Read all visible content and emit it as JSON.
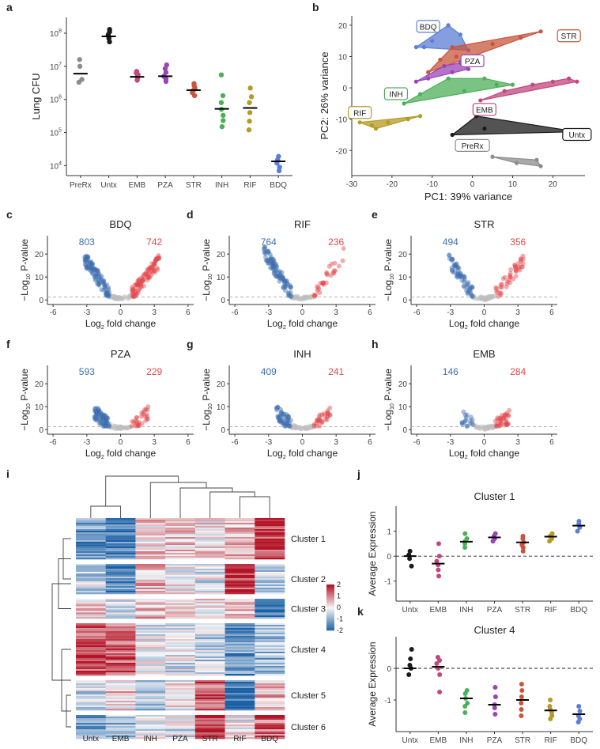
{
  "colors": {
    "PreRx": "#8c8c8c",
    "Untx": "#1a1a1a",
    "EMB": "#c2477e",
    "PZA": "#9a44b5",
    "STR": "#c8553d",
    "INH": "#4daf5a",
    "RIF": "#b59a26",
    "BDQ": "#5c7ed6",
    "down": "#3d6fb0",
    "up": "#e2474b",
    "ns": "#bdbdbd"
  },
  "chart_data": [
    {
      "panel": "a",
      "type": "scatter",
      "ylabel": "Lung CFU",
      "yscale": "log",
      "ylim": [
        5000,
        300000000
      ],
      "yticks": [
        "10^4",
        "10^5",
        "10^6",
        "10^7",
        "10^8"
      ],
      "categories": [
        "PreRx",
        "Untx",
        "EMB",
        "PZA",
        "STR",
        "INH",
        "RIF",
        "BDQ"
      ],
      "points": {
        "PreRx": [
          3300000,
          4000000,
          10000000,
          16000000
        ],
        "Untx": [
          55000000,
          70000000,
          90000000,
          110000000,
          130000000
        ],
        "EMB": [
          3800000,
          4400000,
          5000000,
          5600000,
          6300000,
          7000000
        ],
        "PZA": [
          3500000,
          4200000,
          5000000,
          6500000,
          8500000,
          11000000
        ],
        "STR": [
          1300000,
          1600000,
          1900000,
          2200000,
          2600000,
          3000000
        ],
        "INH": [
          150000,
          230000,
          330000,
          500000,
          800000,
          1300000,
          5500000
        ],
        "RIF": [
          120000,
          220000,
          400000,
          800000,
          1200000,
          2200000
        ],
        "BDQ": [
          7000,
          9000,
          12000,
          15000,
          19000
        ]
      },
      "medians": {
        "PreRx": 6000000,
        "Untx": 80000000,
        "EMB": 4800000,
        "PZA": 5000000,
        "STR": 1900000,
        "INH": 520000,
        "RIF": 550000,
        "BDQ": 13500
      }
    },
    {
      "panel": "b",
      "type": "scatter",
      "xlabel": "PC1: 39% variance",
      "ylabel": "PC2: 26% variance",
      "xlim": [
        -30,
        28
      ],
      "ylim": [
        -28,
        23
      ],
      "xticks": [
        -30,
        -20,
        -10,
        0,
        10,
        20
      ],
      "yticks": [
        -20,
        -10,
        0,
        10,
        20
      ],
      "groups": [
        {
          "name": "BDQ",
          "points": [
            [
              -12,
              13
            ],
            [
              -10,
              15
            ],
            [
              -6,
              20
            ],
            [
              -3,
              17
            ],
            [
              -1,
              12
            ],
            [
              -14,
              13
            ]
          ],
          "label_at": [
            -11,
            19.5
          ]
        },
        {
          "name": "STR",
          "points": [
            [
              -11,
              5
            ],
            [
              -8,
              9
            ],
            [
              -5,
              13
            ],
            [
              5,
              14
            ],
            [
              12,
              16
            ],
            [
              17,
              18
            ],
            [
              -4,
              10
            ]
          ],
          "label_at": [
            24,
            16.5
          ]
        },
        {
          "name": "PZA",
          "points": [
            [
              -14,
              2
            ],
            [
              -11,
              3
            ],
            [
              -7,
              7
            ],
            [
              -3,
              8
            ],
            [
              -1,
              6
            ],
            [
              -5,
              5
            ]
          ],
          "label_at": [
            0,
            8.5
          ]
        },
        {
          "name": "INH",
          "points": [
            [
              -17,
              -5
            ],
            [
              -13,
              -2
            ],
            [
              -6,
              3
            ],
            [
              3,
              3
            ],
            [
              6,
              1
            ],
            [
              10,
              1
            ],
            [
              -2,
              -1
            ]
          ],
          "label_at": [
            -19,
            -2
          ]
        },
        {
          "name": "EMB",
          "points": [
            [
              2,
              -4
            ],
            [
              8,
              -1
            ],
            [
              15,
              1
            ],
            [
              20,
              2
            ],
            [
              24,
              3
            ],
            [
              26,
              2
            ]
          ],
          "label_at": [
            3,
            -7
          ]
        },
        {
          "name": "RIF",
          "points": [
            [
              -28,
              -11
            ],
            [
              -25,
              -12
            ],
            [
              -21,
              -11
            ],
            [
              -16,
              -10
            ],
            [
              -13,
              -9
            ],
            [
              -24,
              -13
            ]
          ],
          "label_at": [
            -28,
            -8
          ]
        },
        {
          "name": "Untx",
          "points": [
            [
              -5,
              -15
            ],
            [
              1,
              -9
            ],
            [
              3,
              -13
            ],
            [
              26,
              -14
            ]
          ],
          "label_at": [
            26,
            -15
          ]
        },
        {
          "name": "PreRx",
          "points": [
            [
              5,
              -22
            ],
            [
              11,
              -24
            ],
            [
              16,
              -23
            ],
            [
              17,
              -25
            ]
          ],
          "label_at": [
            0,
            -18.5
          ]
        }
      ]
    },
    {
      "panel": "c",
      "type": "scatter",
      "title": "BDQ",
      "down": 803,
      "up": 742,
      "spread": 1.0,
      "xlabel": "Log2 fold change",
      "ylabel": "−Log10 P-value",
      "xlim": [
        -6.5,
        6.5
      ],
      "ylim": [
        -2,
        28
      ],
      "xticks": [
        -6,
        -3,
        0,
        3,
        6
      ],
      "yticks": [
        0,
        10,
        20
      ]
    },
    {
      "panel": "d",
      "type": "scatter",
      "title": "RIF",
      "down": 764,
      "up": 236,
      "spread": 1.1,
      "xlabel": "Log2 fold change",
      "ylabel": "−Log10 P-value",
      "xlim": [
        -6.5,
        6.5
      ],
      "ylim": [
        -2,
        28
      ],
      "xticks": [
        -6,
        -3,
        0,
        3,
        6
      ],
      "yticks": [
        0,
        10,
        20
      ]
    },
    {
      "panel": "e",
      "type": "scatter",
      "title": "STR",
      "down": 494,
      "up": 356,
      "spread": 1.0,
      "xlabel": "Log2 fold change",
      "ylabel": "−Log10 P-value",
      "xlim": [
        -6.5,
        6.5
      ],
      "ylim": [
        -2,
        28
      ],
      "xticks": [
        -6,
        -3,
        0,
        3,
        6
      ],
      "yticks": [
        0,
        10,
        20
      ]
    },
    {
      "panel": "f",
      "type": "scatter",
      "title": "PZA",
      "down": 593,
      "up": 229,
      "spread": 0.6,
      "xlabel": "Log2 fold change",
      "ylabel": "−Log10 P-value",
      "xlim": [
        -6.5,
        6.5
      ],
      "ylim": [
        -2,
        28
      ],
      "xticks": [
        -6,
        -3,
        0,
        3,
        6
      ],
      "yticks": [
        0,
        10,
        20
      ]
    },
    {
      "panel": "g",
      "type": "scatter",
      "title": "INH",
      "down": 409,
      "up": 241,
      "spread": 0.6,
      "xlabel": "Log2 fold change",
      "ylabel": "−Log10 P-value",
      "xlim": [
        -6.5,
        6.5
      ],
      "ylim": [
        -2,
        28
      ],
      "xticks": [
        -6,
        -3,
        0,
        3,
        6
      ],
      "yticks": [
        0,
        10,
        20
      ]
    },
    {
      "panel": "h",
      "type": "scatter",
      "title": "EMB",
      "down": 146,
      "up": 284,
      "spread": 0.5,
      "xlabel": "Log2 fold change",
      "ylabel": "−Log10 P-value",
      "xlim": [
        -6.5,
        6.5
      ],
      "ylim": [
        -2,
        28
      ],
      "xticks": [
        -6,
        -3,
        0,
        3,
        6
      ],
      "yticks": [
        0,
        10,
        20
      ]
    },
    {
      "panel": "i",
      "type": "heatmap",
      "columns": [
        "Untx",
        "EMB",
        "INH",
        "PZA",
        "STR",
        "RIF",
        "BDQ"
      ],
      "clusters": [
        {
          "name": "Cluster 1",
          "means": [
            -1.2,
            -1.6,
            0.3,
            0.4,
            0.2,
            0.6,
            1.6
          ]
        },
        {
          "name": "Cluster 2",
          "means": [
            -0.4,
            -1.3,
            0.5,
            0.1,
            -0.2,
            1.6,
            -0.5
          ]
        },
        {
          "name": "Cluster 3",
          "means": [
            0.2,
            -0.3,
            0.5,
            0.4,
            0.3,
            0.5,
            -1.6
          ]
        },
        {
          "name": "Cluster 4",
          "means": [
            1.5,
            1.4,
            -0.1,
            -0.3,
            -0.5,
            -1.3,
            -0.8
          ]
        },
        {
          "name": "Cluster 5",
          "means": [
            -0.3,
            0.3,
            -0.5,
            0.0,
            1.4,
            -1.6,
            0.5
          ]
        },
        {
          "name": "Cluster 6",
          "means": [
            -1.0,
            -0.8,
            -0.1,
            -0.2,
            1.6,
            0.0,
            1.3
          ]
        }
      ],
      "legend_ticks": [
        2,
        1,
        0,
        -1,
        -2
      ]
    },
    {
      "panel": "j",
      "type": "scatter",
      "title": "Cluster 1",
      "ylabel": "Average Expression",
      "categories": [
        "Untx",
        "EMB",
        "INH",
        "PZA",
        "STR",
        "RIF",
        "BDQ"
      ],
      "ylim": [
        -1.8,
        2.0
      ],
      "yticks": [
        -1,
        0,
        1
      ],
      "dashed_at": 0,
      "points": {
        "Untx": [
          -0.4,
          -0.1,
          0.05,
          0.2
        ],
        "EMB": [
          -0.8,
          -0.55,
          -0.35,
          -0.2,
          0.0,
          0.5
        ],
        "INH": [
          0.35,
          0.5,
          0.6,
          0.7,
          0.9
        ],
        "PZA": [
          0.6,
          0.7,
          0.8,
          0.9
        ],
        "STR": [
          0.2,
          0.35,
          0.45,
          0.55,
          0.7,
          0.8
        ],
        "RIF": [
          0.6,
          0.7,
          0.8,
          0.9
        ],
        "BDQ": [
          1.0,
          1.15,
          1.3,
          1.4
        ]
      },
      "medians": {
        "Untx": 0.0,
        "EMB": -0.3,
        "INH": 0.58,
        "PZA": 0.75,
        "STR": 0.55,
        "RIF": 0.78,
        "BDQ": 1.22
      }
    },
    {
      "panel": "k",
      "type": "scatter",
      "title": "Cluster 4",
      "ylabel": "Average Expression",
      "categories": [
        "Untx",
        "EMB",
        "INH",
        "PZA",
        "STR",
        "RIF",
        "BDQ"
      ],
      "ylim": [
        -2.0,
        1.0
      ],
      "yticks": [
        -1,
        0
      ],
      "dashed_at": 0,
      "points": {
        "Untx": [
          -0.2,
          0.0,
          0.1,
          0.3,
          0.6
        ],
        "EMB": [
          -0.75,
          -0.2,
          0.0,
          0.15,
          0.25,
          0.35
        ],
        "INH": [
          -1.4,
          -1.2,
          -1.1,
          -0.95,
          -0.8,
          -0.7
        ],
        "PZA": [
          -1.45,
          -1.25,
          -1.15,
          -0.9,
          -0.6
        ],
        "STR": [
          -1.5,
          -1.3,
          -1.1,
          -0.9,
          -0.7,
          -0.5
        ],
        "RIF": [
          -1.6,
          -1.5,
          -1.4,
          -1.3,
          -1.2,
          -1.0
        ],
        "BDQ": [
          -1.7,
          -1.6,
          -1.5,
          -1.35,
          -1.2
        ]
      },
      "medians": {
        "Untx": 0.0,
        "EMB": 0.05,
        "INH": -0.95,
        "PZA": -1.15,
        "STR": -1.0,
        "RIF": -1.33,
        "BDQ": -1.45
      }
    }
  ]
}
